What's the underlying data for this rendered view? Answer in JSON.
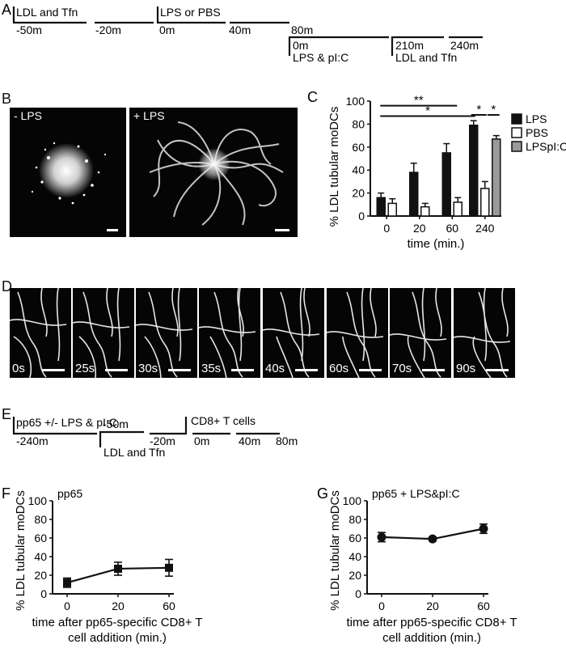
{
  "panel_letters": {
    "A": "A",
    "B": "B",
    "C": "C",
    "D": "D",
    "E": "E",
    "F": "F",
    "G": "G"
  },
  "timeline_a": {
    "seg1": "LDL and Tfn",
    "t1": "-50m",
    "t2": "-20m",
    "seg2": "LPS or PBS",
    "t3": "0m",
    "t4": "40m",
    "t5": "80m",
    "t6": "0m",
    "seg3": "LPS & pI:C",
    "t7": "210m",
    "t8": "240m",
    "seg4": "LDL and Tfn"
  },
  "panel_b": {
    "minus_label": "- LPS",
    "plus_label": "+ LPS"
  },
  "panel_d": {
    "frames": [
      "0s",
      "25s",
      "30s",
      "35s",
      "40s",
      "60s",
      "70s",
      "90s"
    ]
  },
  "timeline_e": {
    "seg1": "pp65 +/- LPS & pI:C",
    "t1": "-240m",
    "t2": "-50m",
    "seg2": "LDL and Tfn",
    "t3": "-20m",
    "seg3": "CD8+ T cells",
    "t4": "0m",
    "t5": "40m",
    "t6": "80m"
  },
  "chart_data": [
    {
      "panel": "C",
      "type": "bar",
      "ylabel": "% LDL tubular moDCs",
      "xlabel": "time (min.)",
      "categories": [
        "0",
        "20",
        "60",
        "240"
      ],
      "ylim": [
        0,
        100
      ],
      "yticks": [
        "0",
        "20",
        "40",
        "60",
        "80",
        "100"
      ],
      "series": [
        {
          "name": "LPS",
          "color": "#111111",
          "values": [
            16,
            38,
            55,
            79
          ],
          "errors": [
            4,
            8,
            8,
            4
          ]
        },
        {
          "name": "PBS",
          "color": "#ffffff",
          "values": [
            11,
            8,
            12,
            24
          ],
          "errors": [
            4,
            3,
            4,
            6
          ]
        },
        {
          "name": "LPSpI:C",
          "color": "#9a9a9a",
          "values": [
            null,
            null,
            null,
            67
          ],
          "errors": [
            null,
            null,
            null,
            3
          ]
        }
      ],
      "significance": [
        {
          "label": "**",
          "from": "0",
          "to": "60"
        },
        {
          "label": "*",
          "from": "0",
          "to": "240"
        },
        {
          "label": "*",
          "from": "240 LPS",
          "to": "240 PBS"
        },
        {
          "label": "*",
          "from": "240 PBS",
          "to": "240 LPSpI:C"
        }
      ],
      "legend_position": "right"
    },
    {
      "panel": "F",
      "type": "line",
      "inset_label": "pp65",
      "ylabel": "% LDL tubular moDCs",
      "xlabel_lines": [
        "time after pp65-specific CD8+ T",
        "cell addition (min.)"
      ],
      "x": [
        "0",
        "20",
        "60"
      ],
      "values": [
        12,
        27,
        28
      ],
      "errors": [
        5,
        7,
        9
      ],
      "ylim": [
        0,
        100
      ],
      "yticks": [
        "0",
        "20",
        "40",
        "60",
        "80",
        "100"
      ],
      "marker": "square"
    },
    {
      "panel": "G",
      "type": "line",
      "inset_label": "pp65 + LPS&pI:C",
      "ylabel": "% LDL tubular moDCs",
      "xlabel_lines": [
        "time after pp65-specific CD8+ T",
        "cell addition (min.)"
      ],
      "x": [
        "0",
        "20",
        "60"
      ],
      "values": [
        61,
        59,
        70
      ],
      "errors": [
        5,
        2,
        5
      ],
      "ylim": [
        0,
        100
      ],
      "yticks": [
        "0",
        "20",
        "40",
        "60",
        "80",
        "100"
      ],
      "marker": "circle"
    }
  ]
}
